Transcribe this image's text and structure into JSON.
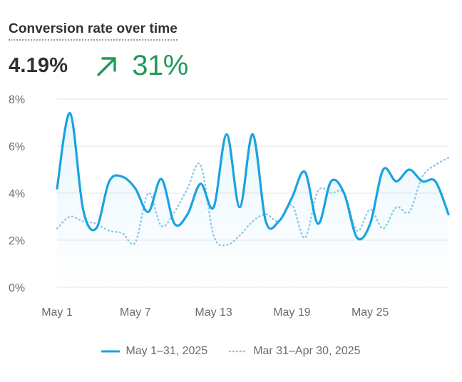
{
  "title": "Conversion rate over time",
  "metric_value": "4.19%",
  "delta": {
    "direction": "up",
    "value": "31%",
    "icon": "arrow-up-right-icon",
    "color": "#1e9b58"
  },
  "colors": {
    "current": "#1aa3e0",
    "previous": "#8ccbe8",
    "grid": "#e6e6e6",
    "axis_text": "#6d6d6d"
  },
  "legend": {
    "current": "May 1–31, 2025",
    "previous": "Mar 31–Apr 30, 2025"
  },
  "chart_data": {
    "type": "line",
    "title": "Conversion rate over time",
    "xlabel": "",
    "ylabel": "",
    "ylim": [
      0,
      8
    ],
    "yticks": [
      0,
      2,
      4,
      6,
      8
    ],
    "ytick_labels": [
      "0%",
      "2%",
      "4%",
      "6%",
      "8%"
    ],
    "x": [
      1,
      2,
      3,
      4,
      5,
      6,
      7,
      8,
      9,
      10,
      11,
      12,
      13,
      14,
      15,
      16,
      17,
      18,
      19,
      20,
      21,
      22,
      23,
      24,
      25,
      26,
      27,
      28,
      29,
      30,
      31
    ],
    "xtick_positions": [
      1,
      7,
      13,
      19,
      25
    ],
    "xtick_labels": [
      "May 1",
      "May 7",
      "May 13",
      "May 19",
      "May 25"
    ],
    "grid": true,
    "legend_position": "bottom",
    "series": [
      {
        "name": "May 1–31, 2025",
        "style": "solid",
        "area": true,
        "values": [
          4.2,
          7.4,
          3.3,
          2.5,
          4.5,
          4.7,
          4.2,
          3.2,
          4.6,
          2.7,
          3.1,
          4.4,
          3.4,
          6.5,
          3.4,
          6.5,
          2.8,
          2.8,
          3.8,
          4.9,
          2.7,
          4.5,
          4.0,
          2.1,
          2.7,
          5.0,
          4.5,
          5.0,
          4.5,
          4.5,
          3.1
        ]
      },
      {
        "name": "Mar 31–Apr 30, 2025",
        "style": "dotted",
        "area": false,
        "values": [
          2.5,
          3.0,
          2.8,
          2.7,
          2.4,
          2.3,
          1.9,
          4.0,
          2.6,
          3.2,
          4.2,
          5.2,
          2.2,
          1.8,
          2.2,
          2.8,
          3.1,
          2.8,
          3.5,
          2.1,
          4.1,
          4.0,
          4.0,
          2.4,
          3.3,
          2.5,
          3.4,
          3.2,
          4.7,
          5.2,
          5.5
        ]
      }
    ]
  }
}
